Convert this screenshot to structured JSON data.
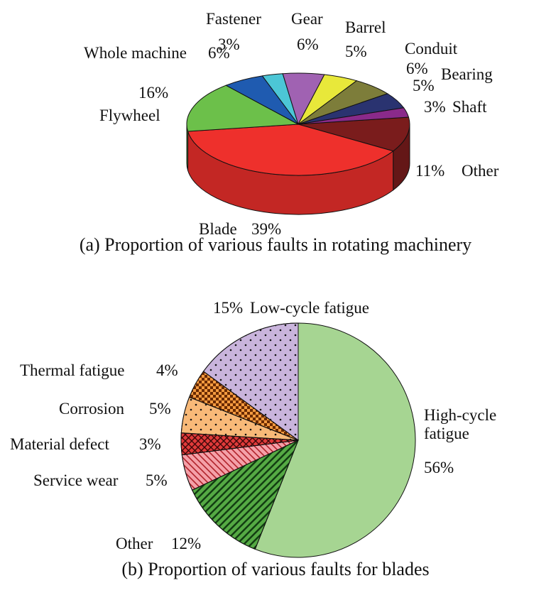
{
  "chart_data": [
    {
      "type": "pie",
      "three_d": true,
      "title": "(a) Proportion of various faults in rotating machinery",
      "categories": [
        "Other",
        "Blade",
        "Flywheel",
        "Whole machine",
        "Fastener",
        "Gear",
        "Barrel",
        "Conduit",
        "Bearing",
        "Shaft"
      ],
      "values": [
        11,
        39,
        16,
        6,
        3,
        6,
        5,
        6,
        5,
        3
      ],
      "value_labels": [
        "11%",
        "39%",
        "16%",
        "6%",
        "3%",
        "6%",
        "5%",
        "6%",
        "5%",
        "3%"
      ],
      "colors": [
        "#7a1c1c",
        "#ee302c",
        "#6cc04a",
        "#1f5bb0",
        "#4cc6d6",
        "#a062b2",
        "#e8e83a",
        "#7d7d3a",
        "#2a3370",
        "#8a2a8a"
      ]
    },
    {
      "type": "pie",
      "three_d": false,
      "title": "(b) Proportion of various faults for blades",
      "categories": [
        "High-cycle fatigue",
        "Other",
        "Service wear",
        "Material defect",
        "Corrosion",
        "Thermal fatigue",
        "Low-cycle fatigue"
      ],
      "values": [
        56,
        12,
        5,
        3,
        5,
        4,
        15
      ],
      "value_labels": [
        "56%",
        "12%",
        "5%",
        "3%",
        "5%",
        "4%",
        "15%"
      ],
      "colors": [
        "#a6d592",
        "#55aa44",
        "#f4a0a8",
        "#e03a3a",
        "#f8b978",
        "#f39a40",
        "#c9b4dc"
      ],
      "patterns": [
        "none",
        "diagonal",
        "back-diagonal",
        "crosshatch",
        "dots",
        "checker",
        "dots"
      ]
    }
  ]
}
